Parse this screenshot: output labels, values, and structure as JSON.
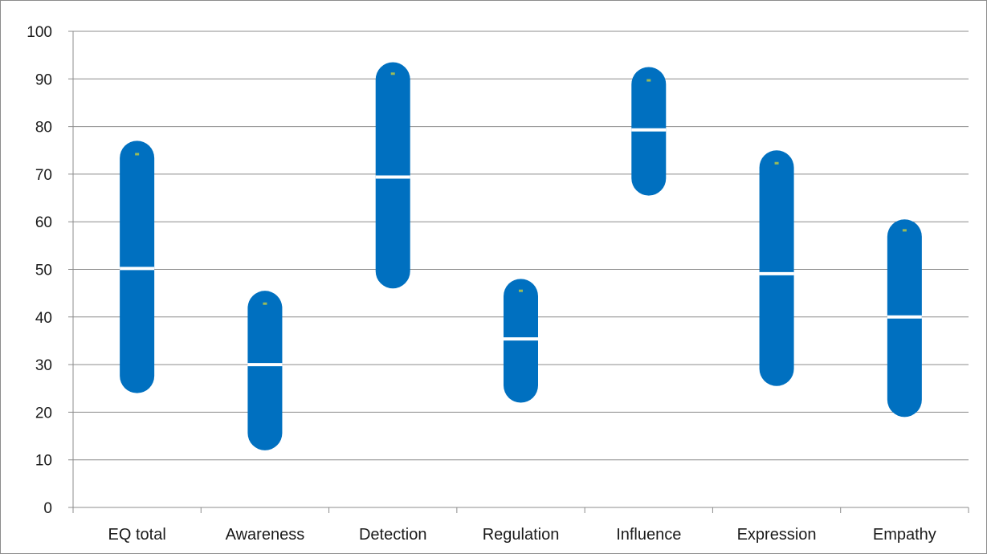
{
  "chart_data": {
    "type": "range",
    "categories": [
      "EQ total",
      "Awareness",
      "Detection",
      "Regulation",
      "Influence",
      "Expression",
      "Empathy"
    ],
    "series": [
      {
        "values_low": [
          24,
          12,
          46,
          22,
          65.5,
          25.5,
          19
        ]
      },
      {
        "values_high": [
          77,
          45.5,
          93.5,
          48,
          92.5,
          75,
          60.5
        ]
      },
      {
        "values_mid": [
          50.2,
          30,
          69.4,
          35.4,
          79.3,
          49.1,
          40
        ]
      },
      {
        "values_top_marker": [
          74.2,
          42.8,
          91.1,
          45.5,
          89.7,
          72.3,
          58.2
        ]
      }
    ],
    "ylim": [
      0,
      100
    ],
    "yticks": [
      0,
      10,
      20,
      30,
      40,
      50,
      60,
      70,
      80,
      90,
      100
    ],
    "grid": true,
    "colors": {
      "bar": "#0070c0",
      "mid_line": "#ffffff",
      "top_marker": "#9bbb59",
      "grid": "#8c8c8c"
    }
  }
}
